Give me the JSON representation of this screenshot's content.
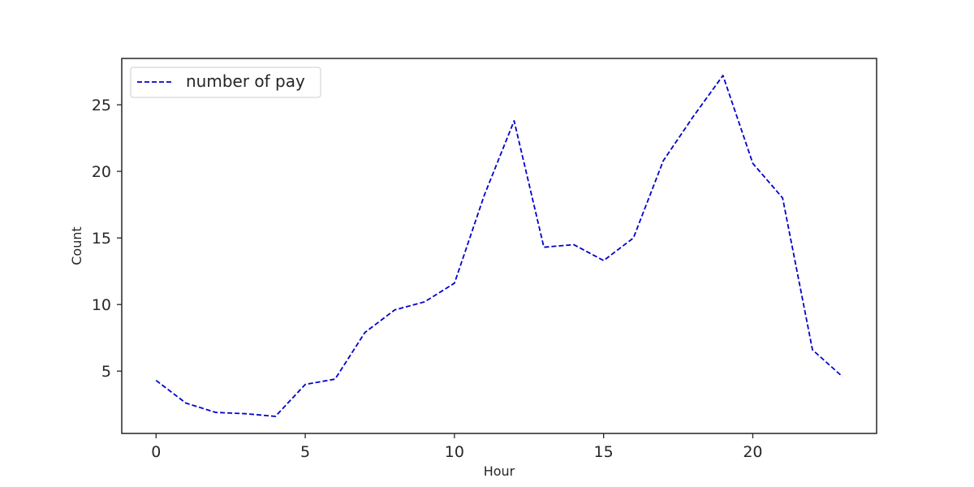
{
  "chart_data": {
    "type": "line",
    "title": "",
    "xlabel": "Hour",
    "ylabel": "Count",
    "x": [
      0,
      1,
      2,
      3,
      4,
      5,
      6,
      7,
      8,
      9,
      10,
      11,
      12,
      13,
      14,
      15,
      16,
      17,
      18,
      19,
      20,
      21,
      22,
      23
    ],
    "series": [
      {
        "name": "number of pay",
        "values": [
          4.3,
          2.6,
          1.9,
          1.8,
          1.6,
          4.0,
          4.4,
          7.9,
          9.6,
          10.2,
          11.6,
          18.2,
          23.8,
          14.3,
          14.5,
          13.3,
          15.0,
          20.8,
          24.1,
          27.2,
          20.6,
          18.0,
          6.6,
          4.6
        ],
        "color": "#0000cc",
        "line_style": "dashed"
      }
    ],
    "xlim": [
      -1.15,
      24.15
    ],
    "ylim": [
      0.32,
      28.48
    ],
    "xticks": [
      0,
      5,
      10,
      15,
      20
    ],
    "yticks": [
      5,
      10,
      15,
      20,
      25
    ],
    "grid": false,
    "legend_position": "upper-left"
  }
}
